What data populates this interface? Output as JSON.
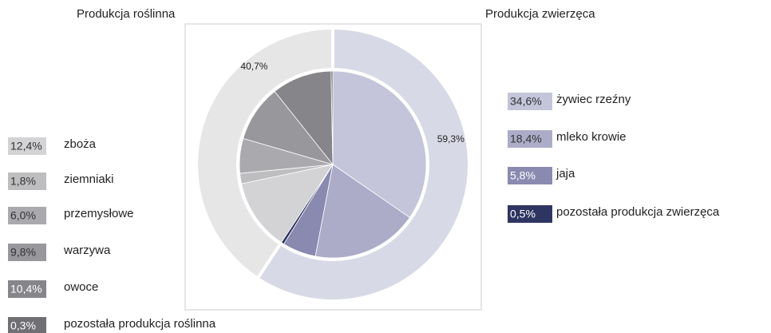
{
  "chart_data": {
    "type": "nested-pie",
    "groups": [
      {
        "name": "Produkcja roślinna",
        "value": 40.7,
        "value_label": "40,7%",
        "color": "#e6e6e7",
        "items": {
          "categories": [
            "zboża",
            "ziemniaki",
            "przemysłowe",
            "warzywa",
            "owoce",
            "pozostała produkcja roślinna"
          ],
          "values": [
            12.4,
            1.8,
            6.0,
            9.8,
            10.4,
            0.3
          ],
          "value_labels": [
            "12,4%",
            "1,8%",
            "6,0%",
            "9,8%",
            "10,4%",
            "0,3%"
          ],
          "colors": [
            "#d3d3d5",
            "#bebec1",
            "#aaaaae",
            "#98989c",
            "#85858a",
            "#6f6f74"
          ]
        }
      },
      {
        "name": "Produkcja zwierzęca",
        "value": 59.3,
        "value_label": "59,3%",
        "color": "#d8d9e6",
        "items": {
          "categories": [
            "żywiec rzeźny",
            "mleko krowie",
            "jaja",
            "pozostała produkcja zwierzęca"
          ],
          "values": [
            34.6,
            18.4,
            5.8,
            0.5
          ],
          "value_labels": [
            "34,6%",
            "18,4%",
            "5,8%",
            "0,5%"
          ],
          "colors": [
            "#c4c4da",
            "#acacc9",
            "#8a8ab0",
            "#2f3562"
          ]
        }
      }
    ]
  }
}
